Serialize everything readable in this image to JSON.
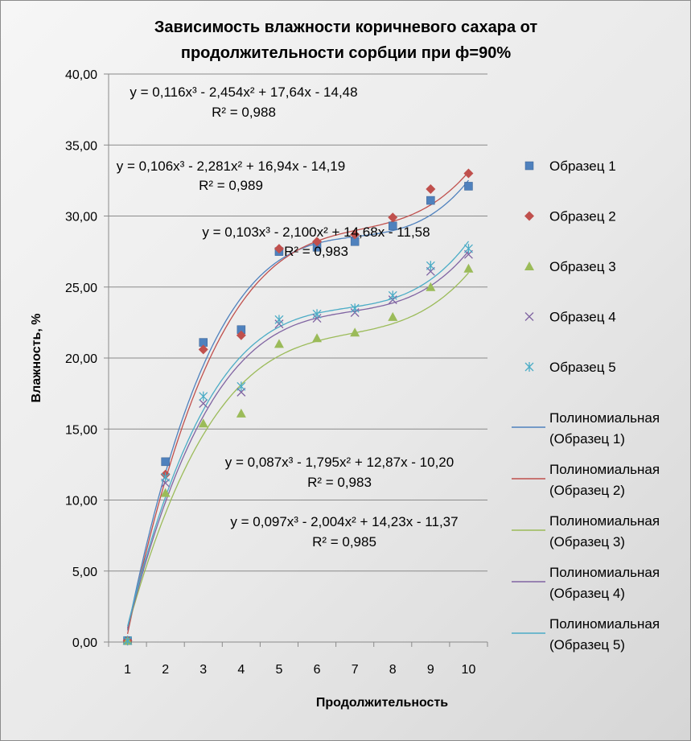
{
  "chart_data": {
    "type": "scatter",
    "title_lines": [
      "Зависимость влажности коричневого сахара от",
      "продолжительности сорбции при ф=90%"
    ],
    "xlabel": "Продолжительность",
    "ylabel": "Влажность, %",
    "ylim": [
      0,
      40
    ],
    "yticks": [
      "0,00",
      "5,00",
      "10,00",
      "15,00",
      "20,00",
      "25,00",
      "30,00",
      "35,00",
      "40,00"
    ],
    "categories": [
      "1",
      "2",
      "3",
      "4",
      "5",
      "6",
      "7",
      "8",
      "9",
      "10"
    ],
    "grid": "horizontal",
    "legend_position": "right",
    "series": [
      {
        "name": "Образец 1",
        "marker": "square",
        "color": "#4f81bd",
        "values": [
          0.1,
          12.7,
          21.1,
          22.0,
          27.5,
          27.8,
          28.2,
          29.3,
          31.1,
          32.1
        ]
      },
      {
        "name": "Образец 2",
        "marker": "diamond",
        "color": "#c0504d",
        "values": [
          0.1,
          11.8,
          20.6,
          21.6,
          27.7,
          28.2,
          28.7,
          29.9,
          31.9,
          33.0
        ]
      },
      {
        "name": "Образец 3",
        "marker": "triangle",
        "color": "#9bbb59",
        "values": [
          0.1,
          10.5,
          15.4,
          16.1,
          21.0,
          21.4,
          21.8,
          22.9,
          25.0,
          26.3
        ]
      },
      {
        "name": "Образец 4",
        "marker": "x",
        "color": "#8064a2",
        "values": [
          0.1,
          11.2,
          16.8,
          17.6,
          22.4,
          22.8,
          23.2,
          24.1,
          26.1,
          27.3
        ]
      },
      {
        "name": "Образец 5",
        "marker": "star",
        "color": "#4bacc6",
        "values": [
          0.1,
          11.6,
          17.3,
          18.0,
          22.7,
          23.1,
          23.5,
          24.4,
          26.5,
          27.7
        ]
      }
    ],
    "trendlines": [
      {
        "name": "Полиномиальная (Образец 1)",
        "color": "#4f81bd",
        "coef": [
          0.116,
          -2.454,
          17.64,
          -14.48
        ]
      },
      {
        "name": "Полиномиальная (Образец 2)",
        "color": "#c0504d",
        "coef": [
          0.106,
          -2.281,
          16.94,
          -14.19
        ]
      },
      {
        "name": "Полиномиальная (Образец 3)",
        "color": "#9bbb59",
        "coef": [
          0.087,
          -1.795,
          12.87,
          -10.2
        ]
      },
      {
        "name": "Полиномиальная (Образец 4)",
        "color": "#8064a2",
        "coef": [
          0.097,
          -2.004,
          14.23,
          -11.37
        ]
      },
      {
        "name": "Полиномиальная (Образец 5)",
        "color": "#4bacc6",
        "coef": [
          0.103,
          -2.1,
          14.68,
          -11.58
        ]
      }
    ],
    "equations": [
      {
        "eq": "y = 0,116x³ - 2,454x² + 17,64x - 14,48",
        "r2": "R² = 0,988"
      },
      {
        "eq": "y = 0,106x³ - 2,281x² + 16,94x - 14,19",
        "r2": "R² = 0,989"
      },
      {
        "eq": "y = 0,103x³ - 2,100x² + 14,68x - 11,58",
        "r2": "R² = 0,983"
      },
      {
        "eq": "y = 0,087x³ - 1,795x² + 12,87x - 10,20",
        "r2": "R² = 0,983"
      },
      {
        "eq": "y = 0,097x³ - 2,004x² + 14,23x - 11,37",
        "r2": "R² = 0,985"
      }
    ]
  }
}
